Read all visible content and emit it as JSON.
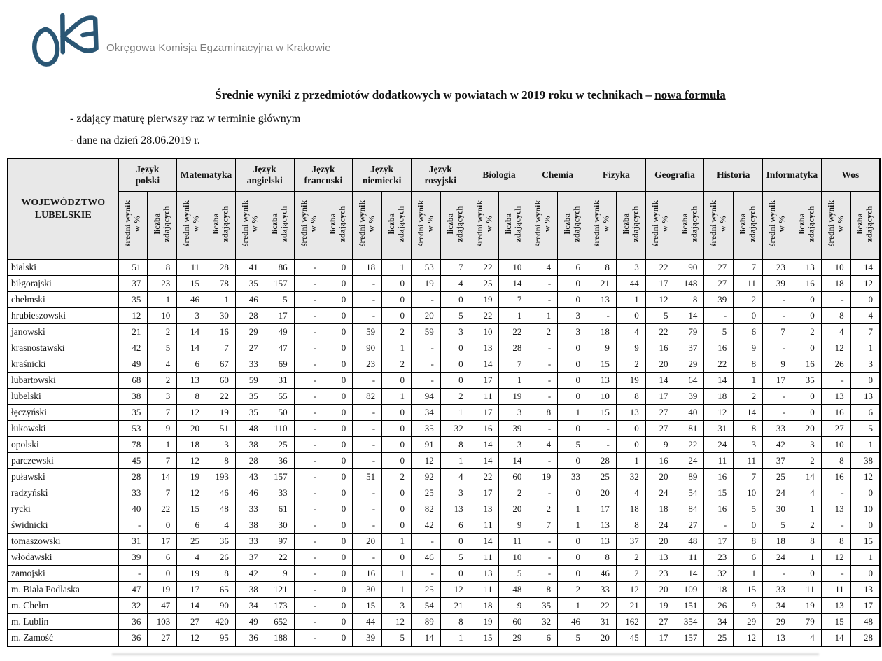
{
  "header": {
    "logo_text": "OKE",
    "org_name": "Okręgowa Komisja Egzaminacyjna w Krakowie",
    "logo_color": "#2a5674",
    "org_text_color": "#7d7d7d"
  },
  "title": {
    "main": "Średnie wyniki z przedmiotów dodatkowych w powiatach w 2019 roku w technikach – ",
    "underlined": "nowa formuła"
  },
  "notes": [
    "- zdający maturę pierwszy raz w terminie głównym",
    "- dane na dzień 28.06.2019 r."
  ],
  "table": {
    "header_bg": "#e8e8e8",
    "corner_header": "WOJEWÓDZTWO\nLUBELSKIE",
    "subjects": [
      "Język\npolski",
      "Matematyka",
      "Język\nangielski",
      "Język\nfrancuski",
      "Język\nniemiecki",
      "Język\nrosyjski",
      "Biologia",
      "Chemia",
      "Fizyka",
      "Geografia",
      "Historia",
      "Informatyka",
      "Wos"
    ],
    "sub_headers": [
      "średni wynik\nw %",
      "liczba\nzdających"
    ],
    "rows": [
      {
        "name": "bialski",
        "values": [
          "51",
          "8",
          "11",
          "28",
          "41",
          "86",
          "-",
          "0",
          "18",
          "1",
          "53",
          "7",
          "22",
          "10",
          "4",
          "6",
          "8",
          "3",
          "22",
          "90",
          "27",
          "7",
          "23",
          "13",
          "10",
          "14"
        ]
      },
      {
        "name": "biłgorajski",
        "values": [
          "37",
          "23",
          "15",
          "78",
          "35",
          "157",
          "-",
          "0",
          "-",
          "0",
          "19",
          "4",
          "25",
          "14",
          "-",
          "0",
          "21",
          "44",
          "17",
          "148",
          "27",
          "11",
          "39",
          "16",
          "18",
          "12"
        ]
      },
      {
        "name": "chełmski",
        "values": [
          "35",
          "1",
          "46",
          "1",
          "46",
          "5",
          "-",
          "0",
          "-",
          "0",
          "-",
          "0",
          "19",
          "7",
          "-",
          "0",
          "13",
          "1",
          "12",
          "8",
          "39",
          "2",
          "-",
          "0",
          "-",
          "0"
        ]
      },
      {
        "name": "hrubieszowski",
        "values": [
          "12",
          "10",
          "3",
          "30",
          "28",
          "17",
          "-",
          "0",
          "-",
          "0",
          "20",
          "5",
          "22",
          "1",
          "1",
          "3",
          "-",
          "0",
          "5",
          "14",
          "-",
          "0",
          "-",
          "0",
          "8",
          "4"
        ]
      },
      {
        "name": "janowski",
        "values": [
          "21",
          "2",
          "14",
          "16",
          "29",
          "49",
          "-",
          "0",
          "59",
          "2",
          "59",
          "3",
          "10",
          "22",
          "2",
          "3",
          "18",
          "4",
          "22",
          "79",
          "5",
          "6",
          "7",
          "2",
          "4",
          "7"
        ]
      },
      {
        "name": "krasnostawski",
        "values": [
          "42",
          "5",
          "14",
          "7",
          "27",
          "47",
          "-",
          "0",
          "90",
          "1",
          "-",
          "0",
          "13",
          "28",
          "-",
          "0",
          "9",
          "9",
          "16",
          "37",
          "16",
          "9",
          "-",
          "0",
          "12",
          "1"
        ]
      },
      {
        "name": "kraśnicki",
        "values": [
          "49",
          "4",
          "6",
          "67",
          "33",
          "69",
          "-",
          "0",
          "23",
          "2",
          "-",
          "0",
          "14",
          "7",
          "-",
          "0",
          "15",
          "2",
          "20",
          "29",
          "22",
          "8",
          "9",
          "16",
          "26",
          "3"
        ]
      },
      {
        "name": "lubartowski",
        "values": [
          "68",
          "2",
          "13",
          "60",
          "59",
          "31",
          "-",
          "0",
          "-",
          "0",
          "-",
          "0",
          "17",
          "1",
          "-",
          "0",
          "13",
          "19",
          "14",
          "64",
          "14",
          "1",
          "17",
          "35",
          "-",
          "0"
        ]
      },
      {
        "name": "lubelski",
        "values": [
          "38",
          "3",
          "8",
          "22",
          "35",
          "55",
          "-",
          "0",
          "82",
          "1",
          "94",
          "2",
          "11",
          "19",
          "-",
          "0",
          "10",
          "8",
          "17",
          "39",
          "18",
          "2",
          "-",
          "0",
          "13",
          "13"
        ]
      },
      {
        "name": "łęczyński",
        "values": [
          "35",
          "7",
          "12",
          "19",
          "35",
          "50",
          "-",
          "0",
          "-",
          "0",
          "34",
          "1",
          "17",
          "3",
          "8",
          "1",
          "15",
          "13",
          "27",
          "40",
          "12",
          "14",
          "-",
          "0",
          "16",
          "6"
        ]
      },
      {
        "name": "łukowski",
        "values": [
          "53",
          "9",
          "20",
          "51",
          "48",
          "110",
          "-",
          "0",
          "-",
          "0",
          "35",
          "32",
          "16",
          "39",
          "-",
          "0",
          "-",
          "0",
          "27",
          "81",
          "31",
          "8",
          "33",
          "20",
          "27",
          "5"
        ]
      },
      {
        "name": "opolski",
        "values": [
          "78",
          "1",
          "18",
          "3",
          "38",
          "25",
          "-",
          "0",
          "-",
          "0",
          "91",
          "8",
          "14",
          "3",
          "4",
          "5",
          "-",
          "0",
          "9",
          "22",
          "24",
          "3",
          "42",
          "3",
          "10",
          "1"
        ]
      },
      {
        "name": "parczewski",
        "values": [
          "45",
          "7",
          "12",
          "8",
          "28",
          "36",
          "-",
          "0",
          "-",
          "0",
          "12",
          "1",
          "14",
          "14",
          "-",
          "0",
          "28",
          "1",
          "16",
          "24",
          "11",
          "11",
          "37",
          "2",
          "8",
          "38"
        ]
      },
      {
        "name": "puławski",
        "values": [
          "28",
          "14",
          "19",
          "193",
          "43",
          "157",
          "-",
          "0",
          "51",
          "2",
          "92",
          "4",
          "22",
          "60",
          "19",
          "33",
          "25",
          "32",
          "20",
          "89",
          "16",
          "7",
          "25",
          "14",
          "16",
          "12"
        ]
      },
      {
        "name": "radzyński",
        "values": [
          "33",
          "7",
          "12",
          "46",
          "46",
          "33",
          "-",
          "0",
          "-",
          "0",
          "25",
          "3",
          "17",
          "2",
          "-",
          "0",
          "20",
          "4",
          "24",
          "54",
          "15",
          "10",
          "24",
          "4",
          "-",
          "0"
        ]
      },
      {
        "name": "rycki",
        "values": [
          "40",
          "22",
          "15",
          "48",
          "33",
          "61",
          "-",
          "0",
          "-",
          "0",
          "82",
          "13",
          "13",
          "20",
          "2",
          "1",
          "17",
          "18",
          "18",
          "84",
          "16",
          "5",
          "30",
          "1",
          "13",
          "10"
        ]
      },
      {
        "name": "świdnicki",
        "values": [
          "-",
          "0",
          "6",
          "4",
          "38",
          "30",
          "-",
          "0",
          "-",
          "0",
          "42",
          "6",
          "11",
          "9",
          "7",
          "1",
          "13",
          "8",
          "24",
          "27",
          "-",
          "0",
          "5",
          "2",
          "-",
          "0"
        ]
      },
      {
        "name": "tomaszowski",
        "values": [
          "31",
          "17",
          "25",
          "36",
          "33",
          "97",
          "-",
          "0",
          "20",
          "1",
          "-",
          "0",
          "14",
          "11",
          "-",
          "0",
          "13",
          "37",
          "20",
          "48",
          "17",
          "8",
          "18",
          "8",
          "8",
          "15"
        ]
      },
      {
        "name": "włodawski",
        "values": [
          "39",
          "6",
          "4",
          "26",
          "37",
          "22",
          "-",
          "0",
          "-",
          "0",
          "46",
          "5",
          "11",
          "10",
          "-",
          "0",
          "8",
          "2",
          "13",
          "11",
          "23",
          "6",
          "24",
          "1",
          "12",
          "1"
        ]
      },
      {
        "name": "zamojski",
        "values": [
          "-",
          "0",
          "19",
          "8",
          "42",
          "9",
          "-",
          "0",
          "16",
          "1",
          "-",
          "0",
          "13",
          "5",
          "-",
          "0",
          "46",
          "2",
          "23",
          "14",
          "32",
          "1",
          "-",
          "0",
          "-",
          "0"
        ]
      },
      {
        "name": "m. Biała Podlaska",
        "values": [
          "47",
          "19",
          "17",
          "65",
          "38",
          "121",
          "-",
          "0",
          "30",
          "1",
          "25",
          "12",
          "11",
          "48",
          "8",
          "2",
          "33",
          "12",
          "20",
          "109",
          "18",
          "15",
          "33",
          "11",
          "11",
          "13"
        ]
      },
      {
        "name": "m. Chełm",
        "values": [
          "32",
          "47",
          "14",
          "90",
          "34",
          "173",
          "-",
          "0",
          "15",
          "3",
          "54",
          "21",
          "18",
          "9",
          "35",
          "1",
          "22",
          "21",
          "19",
          "151",
          "26",
          "9",
          "34",
          "19",
          "13",
          "17"
        ]
      },
      {
        "name": "m. Lublin",
        "values": [
          "36",
          "103",
          "27",
          "420",
          "49",
          "652",
          "-",
          "0",
          "44",
          "12",
          "89",
          "8",
          "19",
          "60",
          "32",
          "46",
          "31",
          "162",
          "27",
          "354",
          "34",
          "29",
          "29",
          "79",
          "15",
          "48"
        ]
      },
      {
        "name": "m. Zamość",
        "values": [
          "36",
          "27",
          "12",
          "95",
          "36",
          "188",
          "-",
          "0",
          "39",
          "5",
          "14",
          "1",
          "15",
          "29",
          "6",
          "5",
          "20",
          "45",
          "17",
          "157",
          "25",
          "12",
          "13",
          "4",
          "14",
          "28"
        ]
      }
    ]
  }
}
